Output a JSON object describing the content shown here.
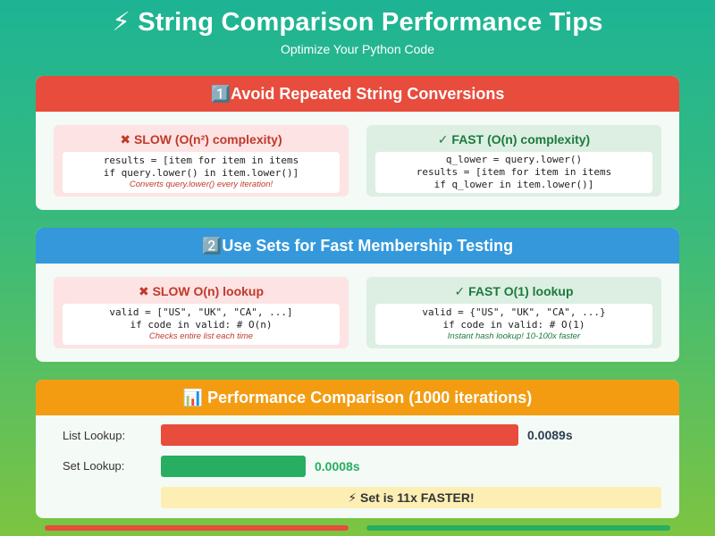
{
  "header": {
    "title": "⚡ String Comparison Performance Tips",
    "subtitle": "Optimize Your Python Code"
  },
  "tip1": {
    "heading": "1️⃣Avoid Repeated String Conversions",
    "slow": {
      "label": "✖ SLOW (O(n²) complexity)",
      "code": [
        "results = [item for item in items",
        "if query.lower() in item.lower()]"
      ],
      "note": "Converts query.lower() every iteration!"
    },
    "fast": {
      "label": "✓ FAST (O(n) complexity)",
      "code": [
        "q_lower = query.lower()",
        "results = [item for item in items",
        "if q_lower in item.lower()]"
      ]
    }
  },
  "tip2": {
    "heading": "2️⃣Use Sets for Fast Membership Testing",
    "slow": {
      "label": "✖ SLOW O(n) lookup",
      "code": [
        "valid = [\"US\", \"UK\", \"CA\", ...]",
        "if code in valid: # O(n)"
      ],
      "note": "Checks entire list each time"
    },
    "fast": {
      "label": "✓ FAST O(1) lookup",
      "code": [
        "valid = {\"US\", \"UK\", \"CA\", ...}",
        "if code in valid: # O(1)"
      ],
      "note": "Instant hash lookup! 10-100x faster"
    }
  },
  "perf": {
    "heading": "📊 Performance Comparison (1000 iterations)",
    "list_label": "List Lookup:",
    "list_value": "0.0089s",
    "list_seconds": 0.0089,
    "set_label": "Set Lookup:",
    "set_value": "0.0008s",
    "set_seconds": 0.0008,
    "banner": "⚡ Set is 11x FASTER!"
  },
  "colors": {
    "slow": "#e74c3c",
    "fast": "#27ae60",
    "info": "#3498db",
    "warn": "#f39c12"
  }
}
